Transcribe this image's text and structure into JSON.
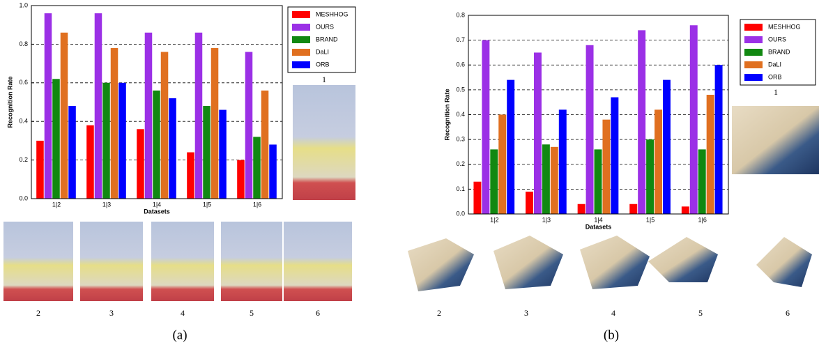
{
  "chart_data": [
    {
      "type": "bar",
      "xlabel": "Datasets",
      "ylabel": "Recognition Rate",
      "categories": [
        "1|2",
        "1|3",
        "1|4",
        "1|5",
        "1|6"
      ],
      "ylim": [
        0,
        1.0
      ],
      "yticks": [
        {
          "value": 0,
          "label": "0.0"
        },
        0.2,
        0.4,
        0.6,
        0.8,
        {
          "value": 1.0,
          "label": "1.0"
        }
      ],
      "grid": true,
      "legend": "outside-right",
      "series": [
        {
          "name": "MESHHOG",
          "color": "#ff0000",
          "values": [
            0.3,
            0.38,
            0.36,
            0.24,
            0.2
          ]
        },
        {
          "name": "OURS",
          "color": "#9b30e6",
          "values": [
            0.96,
            0.96,
            0.86,
            0.86,
            0.76
          ]
        },
        {
          "name": "BRAND",
          "color": "#118811",
          "values": [
            0.62,
            0.6,
            0.56,
            0.48,
            0.32
          ]
        },
        {
          "name": "DaLI",
          "color": "#e07020",
          "values": [
            0.86,
            0.78,
            0.76,
            0.78,
            0.56
          ]
        },
        {
          "name": "ORB",
          "color": "#0000ff",
          "values": [
            0.48,
            0.6,
            0.52,
            0.46,
            0.28
          ]
        }
      ]
    },
    {
      "type": "bar",
      "xlabel": "Datasets",
      "ylabel": "Recognition Rate",
      "categories": [
        "1|2",
        "1|3",
        "1|4",
        "1|5",
        "1|6"
      ],
      "ylim": [
        0,
        0.8
      ],
      "yticks": [
        {
          "value": 0,
          "label": "0.0"
        },
        0.1,
        0.2,
        0.3,
        0.4,
        0.5,
        0.6,
        0.7,
        0.8
      ],
      "grid": true,
      "legend": "outside-right",
      "series": [
        {
          "name": "MESHHOG",
          "color": "#ff0000",
          "values": [
            0.13,
            0.09,
            0.04,
            0.04,
            0.03
          ]
        },
        {
          "name": "OURS",
          "color": "#9b30e6",
          "values": [
            0.7,
            0.65,
            0.68,
            0.74,
            0.76
          ]
        },
        {
          "name": "BRAND",
          "color": "#118811",
          "values": [
            0.26,
            0.28,
            0.26,
            0.3,
            0.26
          ]
        },
        {
          "name": "DaLI",
          "color": "#e07020",
          "values": [
            0.4,
            0.27,
            0.38,
            0.42,
            0.48
          ]
        },
        {
          "name": "ORB",
          "color": "#0000ff",
          "values": [
            0.54,
            0.42,
            0.47,
            0.54,
            0.6
          ]
        }
      ]
    }
  ],
  "panels": [
    {
      "label": "(a)",
      "images": [
        "1",
        "2",
        "3",
        "4",
        "5",
        "6"
      ]
    },
    {
      "label": "(b)",
      "images": [
        "1",
        "2",
        "3",
        "4",
        "5",
        "6"
      ]
    }
  ]
}
